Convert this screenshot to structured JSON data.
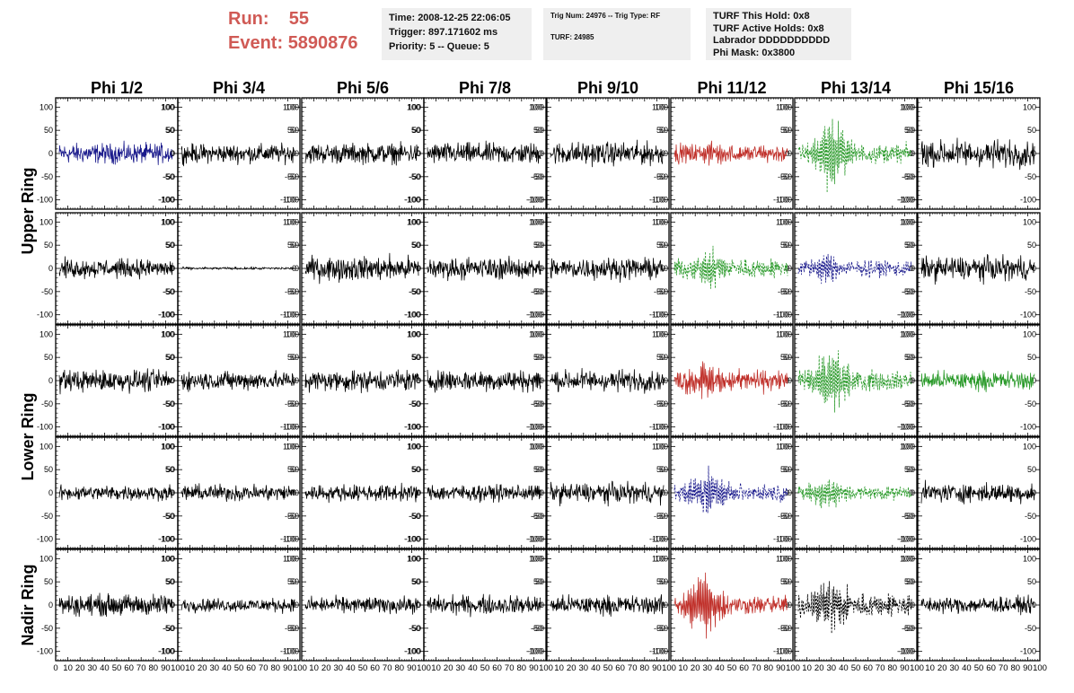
{
  "header": {
    "run_label": "Run:",
    "run_value": "55",
    "event_label": "Event:",
    "event_value": "5890876",
    "time_box": [
      "Time: 2008-12-25 22:06:05",
      "Trigger: 897.171602 ms",
      "Priority: 5 -- Queue: 5"
    ],
    "trig_box": [
      "Trig Num: 24976 -- Trig Type: RF",
      "",
      "TURF: 24985"
    ],
    "turf_box": [
      "TURF This Hold: 0x8",
      "TURF Active Holds: 0x8",
      "Labrador DDDDDDDDDD",
      "Phi Mask: 0x3800"
    ]
  },
  "colors": {
    "black": "#000000",
    "blue": "#1a1a8c",
    "red": "#c0302a",
    "green": "#2a9a2a"
  },
  "chart_data": {
    "type": "line",
    "columns": [
      "Phi 1/2",
      "Phi 3/4",
      "Phi 5/6",
      "Phi 7/8",
      "Phi 9/10",
      "Phi 11/12",
      "Phi 13/14",
      "Phi 15/16"
    ],
    "ring_labels": [
      {
        "text": "Upper Ring",
        "rows": [
          0,
          1
        ]
      },
      {
        "text": "Lower Ring",
        "rows": [
          2,
          3
        ]
      },
      {
        "text": "Nadir Ring",
        "rows": [
          4,
          4
        ]
      }
    ],
    "ylim": [
      -120,
      120
    ],
    "xlim": [
      0,
      100
    ],
    "y_ticks": [
      -100,
      -50,
      0,
      50,
      100
    ],
    "x_ticks": [
      0,
      10,
      20,
      30,
      40,
      50,
      60,
      70,
      80,
      90,
      100
    ],
    "x_tick_labels_first": [
      "0",
      "10",
      "20",
      "30",
      "40",
      "50",
      "60",
      "70",
      "80",
      "90",
      "100"
    ],
    "x_tick_labels_other": [
      "10",
      "20",
      "30",
      "40",
      "50",
      "60",
      "70",
      "80",
      "90",
      "100"
    ],
    "panels": [
      [
        {
          "color": "blue",
          "style": "solid",
          "amp": 15,
          "burst": 0,
          "center": 0.5
        },
        {
          "color": "black",
          "style": "solid",
          "amp": 14,
          "burst": 0,
          "center": 0.5
        },
        {
          "color": "black",
          "style": "solid",
          "amp": 15,
          "burst": 0,
          "center": 0.5
        },
        {
          "color": "black",
          "style": "solid",
          "amp": 16,
          "burst": 0,
          "center": 0.5
        },
        {
          "color": "black",
          "style": "solid",
          "amp": 17,
          "burst": 0,
          "center": 0.5
        },
        {
          "color": "red",
          "style": "solid",
          "amp": 14,
          "burst": 12,
          "center": 0.35
        },
        {
          "color": "green",
          "style": "dashed",
          "amp": 14,
          "burst": 62,
          "center": 0.3
        },
        {
          "color": "black",
          "style": "solid",
          "amp": 20,
          "burst": 0,
          "center": 0.5
        }
      ],
      [
        {
          "color": "black",
          "style": "solid",
          "amp": 14,
          "burst": 0,
          "center": 0.5
        },
        {
          "color": "black",
          "style": "solid",
          "amp": 2,
          "burst": 0,
          "center": 0.5
        },
        {
          "color": "black",
          "style": "solid",
          "amp": 18,
          "burst": 0,
          "center": 0.5
        },
        {
          "color": "black",
          "style": "solid",
          "amp": 16,
          "burst": 0,
          "center": 0.5
        },
        {
          "color": "black",
          "style": "solid",
          "amp": 16,
          "burst": 0,
          "center": 0.5
        },
        {
          "color": "green",
          "style": "dashed",
          "amp": 15,
          "burst": 28,
          "center": 0.3
        },
        {
          "color": "blue",
          "style": "dashed",
          "amp": 12,
          "burst": 22,
          "center": 0.25
        },
        {
          "color": "black",
          "style": "solid",
          "amp": 18,
          "burst": 0,
          "center": 0.5
        }
      ],
      [
        {
          "color": "black",
          "style": "solid",
          "amp": 16,
          "burst": 0,
          "center": 0.5
        },
        {
          "color": "black",
          "style": "solid",
          "amp": 14,
          "burst": 0,
          "center": 0.5
        },
        {
          "color": "black",
          "style": "solid",
          "amp": 16,
          "burst": 0,
          "center": 0.5
        },
        {
          "color": "black",
          "style": "solid",
          "amp": 16,
          "burst": 0,
          "center": 0.5
        },
        {
          "color": "black",
          "style": "solid",
          "amp": 16,
          "burst": 0,
          "center": 0.5
        },
        {
          "color": "red",
          "style": "solid",
          "amp": 16,
          "burst": 32,
          "center": 0.25
        },
        {
          "color": "green",
          "style": "dashed",
          "amp": 15,
          "burst": 50,
          "center": 0.3
        },
        {
          "color": "green",
          "style": "solid",
          "amp": 14,
          "burst": 0,
          "center": 0.5
        }
      ],
      [
        {
          "color": "black",
          "style": "solid",
          "amp": 11,
          "burst": 0,
          "center": 0.5
        },
        {
          "color": "black",
          "style": "solid",
          "amp": 12,
          "burst": 0,
          "center": 0.5
        },
        {
          "color": "black",
          "style": "solid",
          "amp": 12,
          "burst": 0,
          "center": 0.5
        },
        {
          "color": "black",
          "style": "solid",
          "amp": 12,
          "burst": 0,
          "center": 0.5
        },
        {
          "color": "black",
          "style": "solid",
          "amp": 15,
          "burst": 0,
          "center": 0.5
        },
        {
          "color": "blue",
          "style": "dashed",
          "amp": 12,
          "burst": 42,
          "center": 0.3
        },
        {
          "color": "green",
          "style": "dashed",
          "amp": 10,
          "burst": 28,
          "center": 0.25
        },
        {
          "color": "black",
          "style": "solid",
          "amp": 14,
          "burst": 0,
          "center": 0.5
        }
      ],
      [
        {
          "color": "black",
          "style": "solid",
          "amp": 16,
          "burst": 0,
          "center": 0.5
        },
        {
          "color": "black",
          "style": "solid",
          "amp": 10,
          "burst": 0,
          "center": 0.5
        },
        {
          "color": "black",
          "style": "solid",
          "amp": 12,
          "burst": 0,
          "center": 0.5
        },
        {
          "color": "black",
          "style": "solid",
          "amp": 14,
          "burst": 0,
          "center": 0.5
        },
        {
          "color": "black",
          "style": "solid",
          "amp": 14,
          "burst": 0,
          "center": 0.5
        },
        {
          "color": "red",
          "style": "solid",
          "amp": 14,
          "burst": 58,
          "center": 0.25
        },
        {
          "color": "black",
          "style": "dashed",
          "amp": 18,
          "burst": 42,
          "center": 0.3
        },
        {
          "color": "black",
          "style": "solid",
          "amp": 12,
          "burst": 0,
          "center": 0.5
        }
      ]
    ]
  }
}
